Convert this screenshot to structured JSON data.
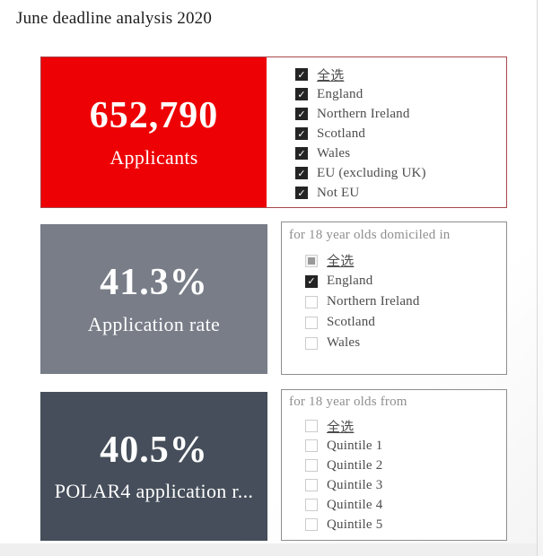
{
  "page": {
    "title": "June deadline analysis 2020"
  },
  "colors": {
    "kpi_red": "#ee0104",
    "kpi_red_border": "#a8474b",
    "kpi_gray": "#787d88",
    "kpi_dark": "#454e5a",
    "panel_border": "#8e8e8e",
    "checkbox_checked": "#242424",
    "option_label": "#4c4c4c",
    "panel_header": "#8f8f8f"
  },
  "rows": [
    {
      "kpi": {
        "value": "652,790",
        "label": "Applicants"
      },
      "filter": {
        "options": [
          {
            "label": "全选",
            "state": "checked"
          },
          {
            "label": "England",
            "state": "checked"
          },
          {
            "label": "Northern Ireland",
            "state": "checked"
          },
          {
            "label": "Scotland",
            "state": "checked"
          },
          {
            "label": "Wales",
            "state": "checked"
          },
          {
            "label": "EU (excluding UK)",
            "state": "checked"
          },
          {
            "label": "Not EU",
            "state": "checked"
          }
        ]
      }
    },
    {
      "kpi": {
        "value": "41.3%",
        "label": "Application rate"
      },
      "filter": {
        "header": "for 18 year olds domiciled in",
        "options": [
          {
            "label": "全选",
            "state": "indeterminate"
          },
          {
            "label": "England",
            "state": "checked"
          },
          {
            "label": "Northern Ireland",
            "state": "unchecked"
          },
          {
            "label": "Scotland",
            "state": "unchecked"
          },
          {
            "label": "Wales",
            "state": "unchecked"
          }
        ]
      }
    },
    {
      "kpi": {
        "value": "40.5%",
        "label": "POLAR4 application r..."
      },
      "filter": {
        "header": "for 18 year olds from",
        "options": [
          {
            "label": "全选",
            "state": "unchecked"
          },
          {
            "label": "Quintile 1",
            "state": "unchecked"
          },
          {
            "label": "Quintile 2",
            "state": "unchecked"
          },
          {
            "label": "Quintile 3",
            "state": "unchecked"
          },
          {
            "label": "Quintile 4",
            "state": "unchecked"
          },
          {
            "label": "Quintile 5",
            "state": "unchecked"
          }
        ]
      }
    }
  ]
}
